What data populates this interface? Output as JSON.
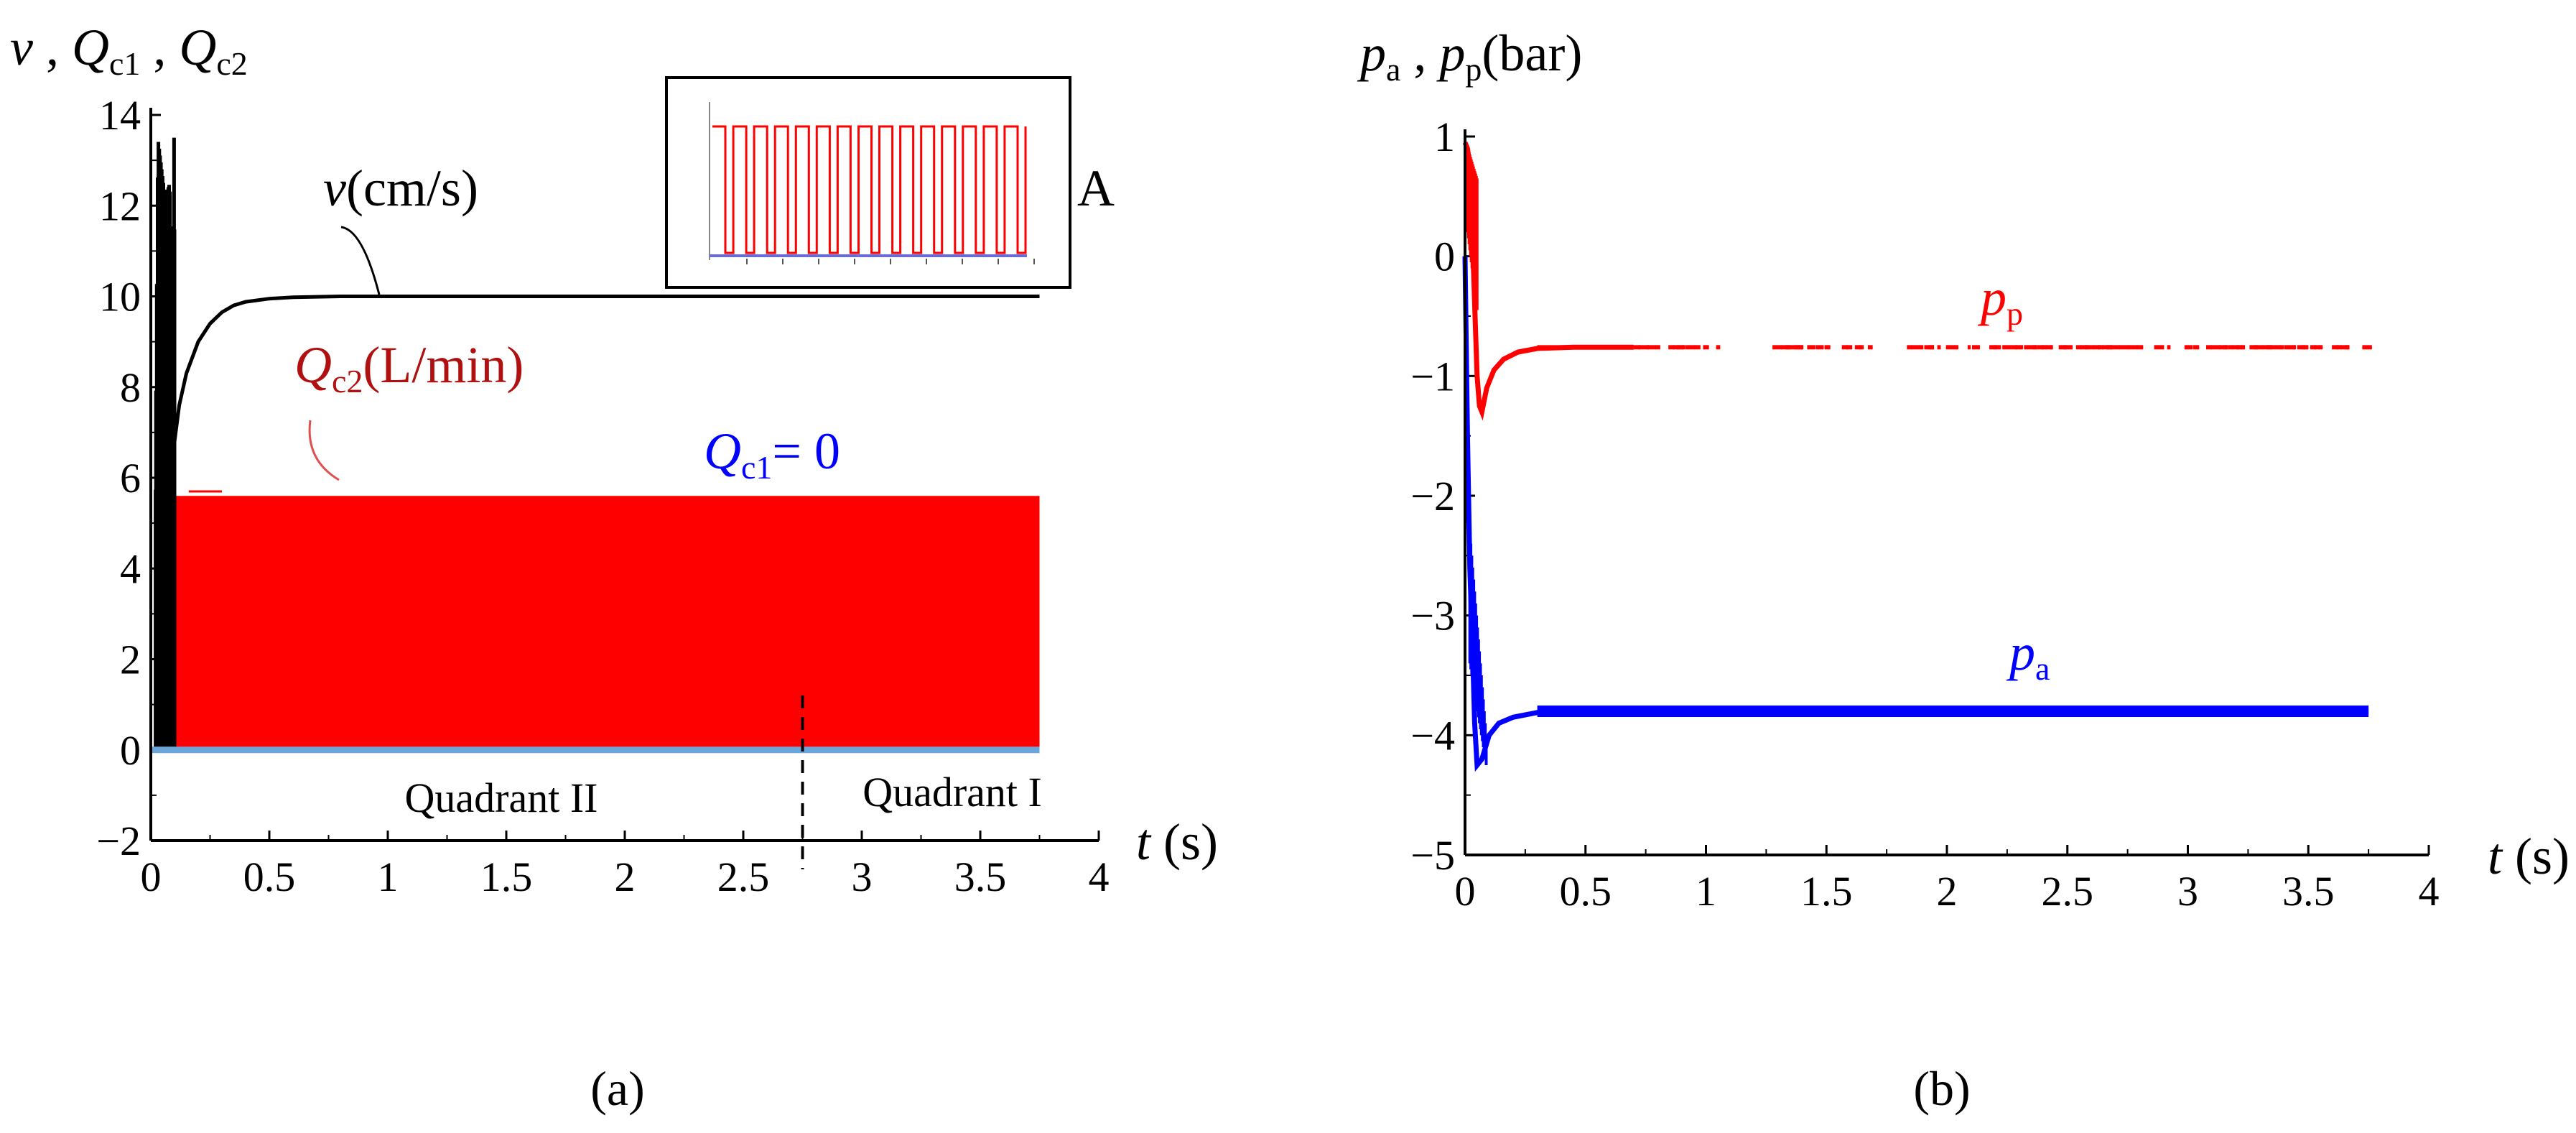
{
  "chart_data": [
    {
      "id": "a",
      "type": "line",
      "caption": "(a)",
      "xlabel": {
        "var": "t",
        "unit": "s"
      },
      "ylabel": {
        "items": [
          {
            "var": "v"
          },
          {
            "var": "Q",
            "sub": "c1"
          },
          {
            "var": "Q",
            "sub": "c2"
          }
        ]
      },
      "xlim": [
        0,
        4
      ],
      "ylim": [
        -2,
        14
      ],
      "xticks": [
        0,
        0.5,
        1,
        1.5,
        2,
        2.5,
        3,
        3.5,
        4
      ],
      "yticks": [
        -2,
        0,
        2,
        4,
        6,
        8,
        10,
        12,
        14
      ],
      "xtick_labels": [
        "0",
        "0.5",
        "1",
        "1.5",
        "2",
        "2.5",
        "3",
        "3.5",
        "4"
      ],
      "ytick_labels": [
        "−2",
        "0",
        "2",
        "4",
        "6",
        "8",
        "10",
        "12",
        "14"
      ],
      "series": [
        {
          "name": "v",
          "unit": "cm/s",
          "color": "#000000",
          "settle_value": 10,
          "x_end": 3.75,
          "points": [
            [
              0.1,
              6.8
            ],
            [
              0.12,
              7.6
            ],
            [
              0.15,
              8.3
            ],
            [
              0.2,
              9.0
            ],
            [
              0.25,
              9.4
            ],
            [
              0.3,
              9.65
            ],
            [
              0.35,
              9.8
            ],
            [
              0.4,
              9.88
            ],
            [
              0.5,
              9.95
            ],
            [
              0.6,
              9.98
            ],
            [
              0.8,
              10
            ],
            [
              1.0,
              10
            ],
            [
              3.75,
              10
            ]
          ],
          "startup_oscillation": {
            "x_start": 0.02,
            "x_end": 0.1,
            "y_min": 0,
            "y_max": 13.5,
            "peaks": [
              [
                0.03,
                13.5
              ],
              [
                0.06,
                12.2
              ],
              [
                0.08,
                12.5
              ],
              [
                0.095,
                9.2
              ]
            ]
          }
        },
        {
          "name": "Q_c2",
          "unit": "L/min",
          "color": "#ff0000",
          "band_min": 0,
          "band_max": 5.6,
          "x_start": 0.1,
          "x_end": 3.75,
          "start_spike": 5.7
        },
        {
          "name": "Q_c1",
          "color": "#0000ff",
          "value": 0,
          "x_start": 0,
          "x_end": 3.75
        }
      ],
      "annotations": {
        "v_label": {
          "var": "v",
          "unit": "cm/s"
        },
        "qc2_label": {
          "var": "Q",
          "sub": "c2",
          "unit": "L/min"
        },
        "qc1_label": {
          "var": "Q",
          "sub": "c1",
          "text": "= 0"
        },
        "inset_label": "A",
        "quadrant_left": "Quadrant II",
        "quadrant_right": "Quadrant I",
        "quadrant_boundary_x": 2.75
      },
      "inset": {
        "label": "A",
        "description_series": [
          "Q_c2 square wave",
          "Q_c1 baseline"
        ],
        "pulses": 15,
        "colors": {
          "wave": "#ff0000",
          "baseline": "#0000ff"
        }
      }
    },
    {
      "id": "b",
      "type": "line",
      "caption": "(b)",
      "xlabel": {
        "var": "t",
        "unit": "s"
      },
      "ylabel": {
        "items": [
          {
            "var": "p",
            "sub": "a"
          },
          {
            "var": "p",
            "sub": "p"
          }
        ],
        "unit": "bar"
      },
      "xlim": [
        0,
        4
      ],
      "ylim": [
        -5,
        1
      ],
      "xticks": [
        0,
        0.5,
        1,
        1.5,
        2,
        2.5,
        3,
        3.5,
        4
      ],
      "yticks": [
        -5,
        -4,
        -3,
        -2,
        -1,
        0,
        1
      ],
      "xtick_labels": [
        "0",
        "0.5",
        "1",
        "1.5",
        "2",
        "2.5",
        "3",
        "3.5",
        "4"
      ],
      "ytick_labels": [
        "−5",
        "−4",
        "−3",
        "−2",
        "−1",
        "0",
        "1"
      ],
      "series": [
        {
          "name": "p_p",
          "color": "#ff0000",
          "settle_value": -0.76,
          "x_end": 3.75,
          "points": [
            [
              0,
              0.95
            ],
            [
              0.01,
              0.9
            ],
            [
              0.02,
              0.75
            ],
            [
              0.03,
              0.2
            ],
            [
              0.04,
              -0.4
            ],
            [
              0.05,
              -1.0
            ],
            [
              0.06,
              -1.25
            ],
            [
              0.07,
              -1.3
            ],
            [
              0.09,
              -1.1
            ],
            [
              0.12,
              -0.95
            ],
            [
              0.16,
              -0.86
            ],
            [
              0.22,
              -0.8
            ],
            [
              0.3,
              -0.77
            ],
            [
              0.45,
              -0.76
            ],
            [
              0.7,
              -0.76
            ]
          ],
          "dotted_from": 0.7
        },
        {
          "name": "p_a",
          "color": "#0000ff",
          "settle_value": -3.8,
          "x_end": 3.75,
          "points": [
            [
              0,
              0
            ],
            [
              0.01,
              -1.5
            ],
            [
              0.02,
              -2.6
            ],
            [
              0.03,
              -3.2
            ],
            [
              0.04,
              -3.9
            ],
            [
              0.05,
              -4.25
            ],
            [
              0.07,
              -4.2
            ],
            [
              0.1,
              -4.0
            ],
            [
              0.14,
              -3.9
            ],
            [
              0.2,
              -3.85
            ],
            [
              0.3,
              -3.81
            ],
            [
              0.5,
              -3.8
            ],
            [
              1.0,
              -3.8
            ],
            [
              3.75,
              -3.8
            ]
          ]
        }
      ],
      "annotations": {
        "pp_label": {
          "var": "p",
          "sub": "p"
        },
        "pa_label": {
          "var": "p",
          "sub": "a"
        }
      }
    }
  ]
}
